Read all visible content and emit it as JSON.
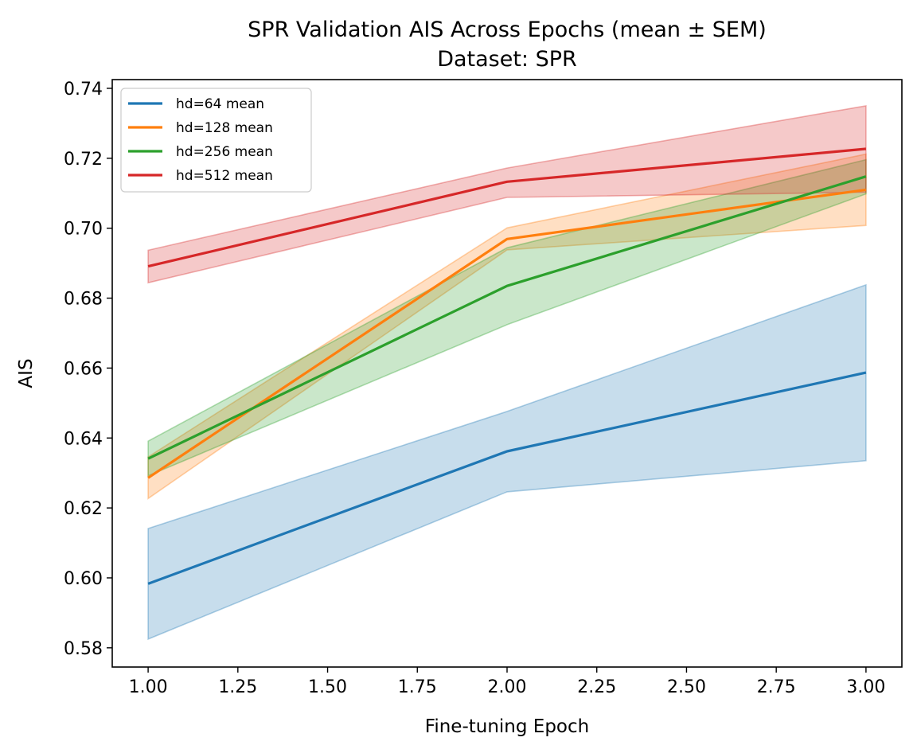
{
  "chart_data": {
    "type": "line",
    "title": "SPR Validation AIS Across Epochs (mean ± SEM)",
    "subtitle": "Dataset: SPR",
    "xlabel": "Fine-tuning Epoch",
    "ylabel": "AIS",
    "xlim": [
      0.9,
      3.1
    ],
    "ylim": [
      0.5745,
      0.7425
    ],
    "x": [
      1.0,
      2.0,
      3.0
    ],
    "xticks": [
      "1.00",
      "1.25",
      "1.50",
      "1.75",
      "2.00",
      "2.25",
      "2.50",
      "2.75",
      "3.00"
    ],
    "yticks": [
      "0.58",
      "0.60",
      "0.62",
      "0.64",
      "0.66",
      "0.68",
      "0.70",
      "0.72",
      "0.74"
    ],
    "grid": false,
    "legend_position": "top-left",
    "series": [
      {
        "name": "hd=64 mean",
        "color": "#1f77b4",
        "mean": [
          0.5983,
          0.6362,
          0.6587
        ],
        "lower": [
          0.5825,
          0.6246,
          0.6335
        ],
        "upper": [
          0.6141,
          0.6476,
          0.6838
        ]
      },
      {
        "name": "hd=128 mean",
        "color": "#ff7f0e",
        "mean": [
          0.6286,
          0.6969,
          0.711
        ],
        "lower": [
          0.6227,
          0.6938,
          0.7008
        ],
        "upper": [
          0.6346,
          0.7001,
          0.7212
        ]
      },
      {
        "name": "hd=256 mean",
        "color": "#2ca02c",
        "mean": [
          0.6341,
          0.6835,
          0.7148
        ],
        "lower": [
          0.6292,
          0.6724,
          0.7098
        ],
        "upper": [
          0.6391,
          0.6944,
          0.7196
        ]
      },
      {
        "name": "hd=512 mean",
        "color": "#d62728",
        "mean": [
          0.6891,
          0.7133,
          0.7227
        ],
        "lower": [
          0.6844,
          0.7088,
          0.7103
        ],
        "upper": [
          0.6937,
          0.7172,
          0.735
        ]
      }
    ]
  }
}
